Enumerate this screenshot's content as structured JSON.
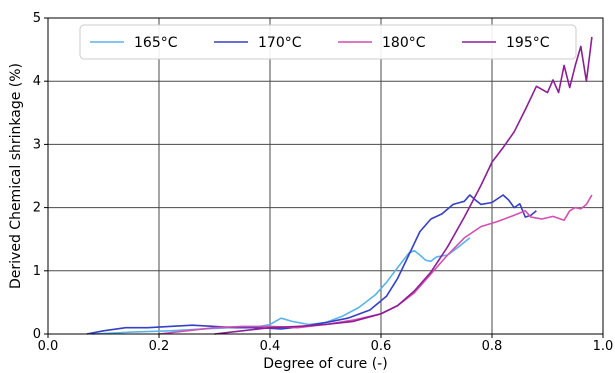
{
  "chart_data": {
    "type": "line",
    "title": "",
    "xlabel": "Degree of cure (-)",
    "ylabel": "Derived Chemical shrinkage (%)",
    "xlim": [
      0.0,
      1.0
    ],
    "ylim": [
      0,
      5
    ],
    "xticks": [
      "0.0",
      "0.2",
      "0.4",
      "0.6",
      "0.8",
      "1.0"
    ],
    "yticks": [
      "0",
      "1",
      "2",
      "3",
      "4",
      "5"
    ],
    "grid": true,
    "legend_position": "top",
    "series": [
      {
        "name": "165°C",
        "color": "#5ab4ea",
        "x": [
          0.08,
          0.15,
          0.22,
          0.28,
          0.33,
          0.37,
          0.4,
          0.42,
          0.44,
          0.47,
          0.5,
          0.53,
          0.56,
          0.59,
          0.61,
          0.63,
          0.65,
          0.66,
          0.67,
          0.68,
          0.69,
          0.7,
          0.72,
          0.74,
          0.76
        ],
        "y": [
          0.0,
          0.03,
          0.05,
          0.08,
          0.1,
          0.1,
          0.15,
          0.25,
          0.2,
          0.15,
          0.18,
          0.28,
          0.42,
          0.62,
          0.82,
          1.05,
          1.28,
          1.32,
          1.25,
          1.17,
          1.15,
          1.22,
          1.25,
          1.38,
          1.52
        ]
      },
      {
        "name": "170°C",
        "color": "#3440c6",
        "x": [
          0.07,
          0.1,
          0.14,
          0.18,
          0.22,
          0.26,
          0.3,
          0.34,
          0.38,
          0.42,
          0.46,
          0.5,
          0.54,
          0.58,
          0.61,
          0.63,
          0.65,
          0.67,
          0.69,
          0.71,
          0.73,
          0.75,
          0.76,
          0.77,
          0.78,
          0.8,
          0.82,
          0.83,
          0.84,
          0.85,
          0.86,
          0.87,
          0.88
        ],
        "y": [
          0.0,
          0.05,
          0.1,
          0.1,
          0.12,
          0.14,
          0.12,
          0.1,
          0.1,
          0.08,
          0.12,
          0.18,
          0.25,
          0.38,
          0.6,
          0.88,
          1.25,
          1.62,
          1.82,
          1.9,
          2.05,
          2.1,
          2.2,
          2.12,
          2.05,
          2.08,
          2.2,
          2.12,
          2.0,
          2.06,
          1.85,
          1.88,
          1.95
        ]
      },
      {
        "name": "180°C",
        "color": "#d44fb2",
        "x": [
          0.2,
          0.25,
          0.3,
          0.35,
          0.4,
          0.45,
          0.5,
          0.55,
          0.6,
          0.63,
          0.66,
          0.69,
          0.72,
          0.75,
          0.78,
          0.81,
          0.84,
          0.86,
          0.87,
          0.89,
          0.91,
          0.93,
          0.94,
          0.95,
          0.96,
          0.97,
          0.98
        ],
        "y": [
          0.0,
          0.05,
          0.1,
          0.12,
          0.12,
          0.1,
          0.15,
          0.22,
          0.32,
          0.45,
          0.65,
          0.95,
          1.25,
          1.52,
          1.7,
          1.78,
          1.88,
          1.95,
          1.85,
          1.82,
          1.86,
          1.8,
          1.95,
          2.0,
          1.98,
          2.05,
          2.2
        ]
      },
      {
        "name": "195°C",
        "color": "#8e1e96",
        "x": [
          0.3,
          0.35,
          0.4,
          0.45,
          0.5,
          0.55,
          0.6,
          0.63,
          0.66,
          0.69,
          0.72,
          0.75,
          0.78,
          0.8,
          0.82,
          0.84,
          0.86,
          0.88,
          0.9,
          0.91,
          0.92,
          0.93,
          0.94,
          0.95,
          0.96,
          0.97,
          0.98
        ],
        "y": [
          0.0,
          0.05,
          0.1,
          0.12,
          0.15,
          0.2,
          0.32,
          0.45,
          0.68,
          0.98,
          1.38,
          1.85,
          2.35,
          2.72,
          2.95,
          3.2,
          3.55,
          3.92,
          3.82,
          4.02,
          3.82,
          4.25,
          3.9,
          4.25,
          4.55,
          4.0,
          4.7
        ]
      }
    ]
  }
}
